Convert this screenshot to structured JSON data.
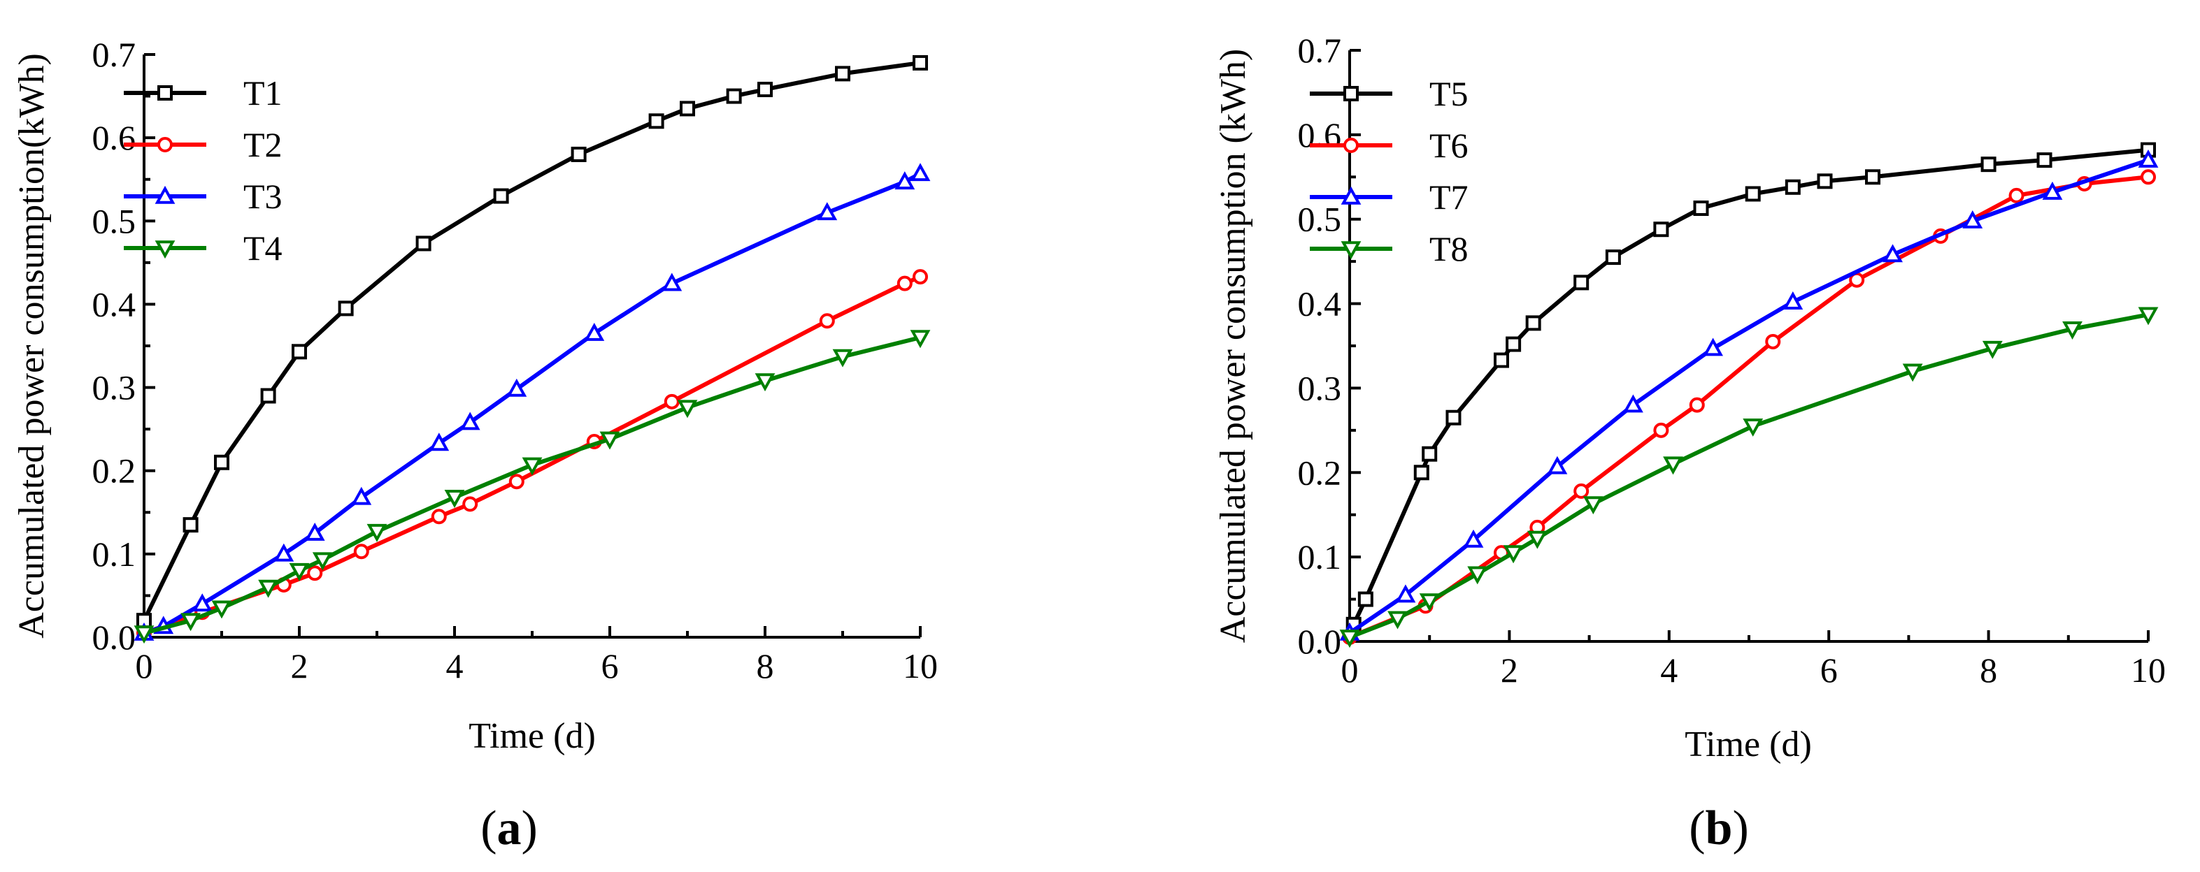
{
  "chart_data": [
    {
      "type": "line",
      "panel_label": "a",
      "xlabel": "Time (d)",
      "ylabel": "Accumulated power consumption(kWh)",
      "xlim": [
        0,
        10
      ],
      "ylim": [
        0,
        0.7
      ],
      "xticks": [
        "0",
        "2",
        "4",
        "6",
        "8",
        "10"
      ],
      "yticks": [
        "0.0",
        "0.1",
        "0.2",
        "0.3",
        "0.4",
        "0.5",
        "0.6",
        "0.7"
      ],
      "legend": "top-left",
      "series": [
        {
          "name": "T1",
          "color": "#000000",
          "marker": "square",
          "x": [
            0,
            0.6,
            1,
            1.6,
            2,
            2.6,
            3.6,
            4.6,
            5.6,
            6.6,
            7,
            7.6,
            8,
            9,
            10
          ],
          "y": [
            0.02,
            0.135,
            0.21,
            0.29,
            0.343,
            0.395,
            0.473,
            0.53,
            0.58,
            0.62,
            0.635,
            0.65,
            0.658,
            0.677,
            0.69
          ]
        },
        {
          "name": "T2",
          "color": "#ff0000",
          "marker": "circle",
          "x": [
            0,
            0.75,
            1.8,
            2.2,
            2.8,
            3.8,
            4.2,
            4.8,
            5.8,
            6.8,
            8.8,
            9.8,
            10
          ],
          "y": [
            0.005,
            0.03,
            0.063,
            0.077,
            0.103,
            0.145,
            0.16,
            0.187,
            0.235,
            0.283,
            0.38,
            0.425,
            0.433
          ]
        },
        {
          "name": "T3",
          "color": "#0000ff",
          "marker": "triangle-up",
          "x": [
            0,
            0.25,
            0.75,
            1.8,
            2.2,
            2.8,
            3.8,
            4.2,
            4.8,
            5.8,
            6.8,
            8.8,
            9.8,
            10
          ],
          "y": [
            0.005,
            0.013,
            0.04,
            0.1,
            0.125,
            0.168,
            0.233,
            0.258,
            0.298,
            0.365,
            0.425,
            0.51,
            0.547,
            0.557
          ]
        },
        {
          "name": "T4",
          "color": "#008000",
          "marker": "triangle-down",
          "x": [
            0,
            0.6,
            1,
            1.6,
            2,
            2.3,
            3,
            4,
            5,
            6,
            7,
            8,
            9,
            10
          ],
          "y": [
            0.005,
            0.02,
            0.035,
            0.06,
            0.08,
            0.093,
            0.127,
            0.168,
            0.207,
            0.238,
            0.276,
            0.308,
            0.337,
            0.36
          ]
        }
      ]
    },
    {
      "type": "line",
      "panel_label": "b",
      "xlabel": "Time (d)",
      "ylabel": "Accumulated power consumption (kWh)",
      "xlim": [
        0,
        10
      ],
      "ylim": [
        0,
        0.7
      ],
      "xticks": [
        "0",
        "2",
        "4",
        "6",
        "8",
        "10"
      ],
      "yticks": [
        "0.0",
        "0.1",
        "0.2",
        "0.3",
        "0.4",
        "0.5",
        "0.6",
        "0.7"
      ],
      "legend": "top-left",
      "series": [
        {
          "name": "T5",
          "color": "#000000",
          "marker": "square",
          "x": [
            0.05,
            0.2,
            0.9,
            1,
            1.3,
            1.9,
            2.05,
            2.3,
            2.9,
            3.3,
            3.9,
            4.4,
            5.05,
            5.55,
            5.95,
            6.55,
            8,
            8.7,
            10
          ],
          "y": [
            0.02,
            0.05,
            0.2,
            0.222,
            0.265,
            0.333,
            0.352,
            0.377,
            0.425,
            0.455,
            0.488,
            0.513,
            0.53,
            0.538,
            0.545,
            0.55,
            0.565,
            0.57,
            0.582
          ]
        },
        {
          "name": "T6",
          "color": "#ff0000",
          "marker": "circle",
          "x": [
            0,
            0.95,
            1.9,
            2.35,
            2.9,
            3.9,
            4.35,
            5.3,
            6.35,
            7.4,
            8.35,
            9.2,
            10
          ],
          "y": [
            0.005,
            0.042,
            0.105,
            0.135,
            0.178,
            0.25,
            0.28,
            0.355,
            0.428,
            0.48,
            0.528,
            0.542,
            0.55
          ]
        },
        {
          "name": "T7",
          "color": "#0000ff",
          "marker": "triangle-up",
          "x": [
            0,
            0.7,
            1.55,
            2.6,
            3.55,
            4.55,
            5.55,
            6.8,
            7.8,
            8.8,
            10
          ],
          "y": [
            0.01,
            0.055,
            0.12,
            0.207,
            0.28,
            0.347,
            0.402,
            0.458,
            0.498,
            0.532,
            0.57
          ]
        },
        {
          "name": "T8",
          "color": "#008000",
          "marker": "triangle-down",
          "x": [
            0,
            0.6,
            1,
            1.6,
            2.05,
            2.35,
            3.05,
            4.05,
            5.05,
            7.05,
            8.05,
            9.05,
            10
          ],
          "y": [
            0.005,
            0.027,
            0.048,
            0.08,
            0.105,
            0.122,
            0.163,
            0.21,
            0.255,
            0.32,
            0.347,
            0.37,
            0.387
          ]
        }
      ]
    }
  ]
}
